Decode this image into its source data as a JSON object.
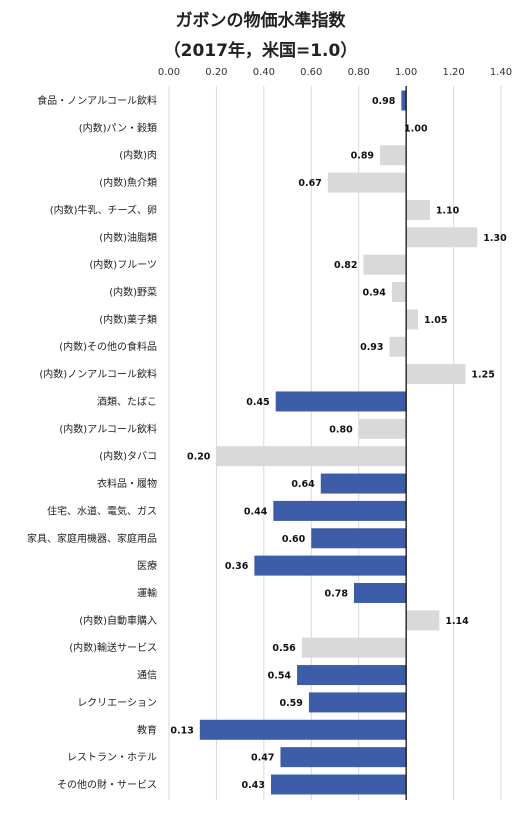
{
  "chart_data": {
    "type": "bar",
    "orientation": "horizontal",
    "title": "ガボンの物価水準指数",
    "subtitle": "（2017年，米国=1.0）",
    "xlabel": "",
    "ylabel": "",
    "xlim": [
      0,
      1.4
    ],
    "tick_step": 0.2,
    "tick_labels": [
      "0.00",
      "0.20",
      "0.40",
      "0.60",
      "0.80",
      "1.00",
      "1.20",
      "1.40"
    ],
    "axis_position": "top",
    "grid": true,
    "reference_value": 1.0,
    "colors": {
      "main": "#3d5da8",
      "sub": "#d9d9d9",
      "grid": "#d9d9d9",
      "baseline": "#000000"
    },
    "categories": [
      "食品・ノンアルコール飲料",
      "(内数)パン・穀類",
      "(内数)肉",
      "(内数)魚介類",
      "(内数)牛乳、チーズ、卵",
      "(内数)油脂類",
      "(内数)フルーツ",
      "(内数)野菜",
      "(内数)菓子類",
      "(内数)その他の食料品",
      "(内数)ノンアルコール飲料",
      "酒類、たばこ",
      "(内数)アルコール飲料",
      "(内数)タバコ",
      "衣料品・履物",
      "住宅、水道、電気、ガス",
      "家具、家庭用機器、家庭用品",
      "医療",
      "運輸",
      "(内数)自動車購入",
      "(内数)輸送サービス",
      "通信",
      "レクリエーション",
      "教育",
      "レストラン・ホテル",
      "その他の財・サービス"
    ],
    "values": [
      0.98,
      1.0,
      0.89,
      0.67,
      1.1,
      1.3,
      0.82,
      0.94,
      1.05,
      0.93,
      1.25,
      0.45,
      0.8,
      0.2,
      0.64,
      0.44,
      0.6,
      0.36,
      0.78,
      1.14,
      0.56,
      0.54,
      0.59,
      0.13,
      0.47,
      0.43
    ],
    "value_labels": [
      "0.98",
      "1.00",
      "0.89",
      "0.67",
      "1.10",
      "1.30",
      "0.82",
      "0.94",
      "1.05",
      "0.93",
      "1.25",
      "0.45",
      "0.80",
      "0.20",
      "0.64",
      "0.44",
      "0.60",
      "0.36",
      "0.78",
      "1.14",
      "0.56",
      "0.54",
      "0.59",
      "0.13",
      "0.47",
      "0.43"
    ],
    "bar_style": [
      "main",
      "sub",
      "sub",
      "sub",
      "sub",
      "sub",
      "sub",
      "sub",
      "sub",
      "sub",
      "sub",
      "main",
      "sub",
      "sub",
      "main",
      "main",
      "main",
      "main",
      "main",
      "sub",
      "sub",
      "main",
      "main",
      "main",
      "main",
      "main"
    ]
  }
}
